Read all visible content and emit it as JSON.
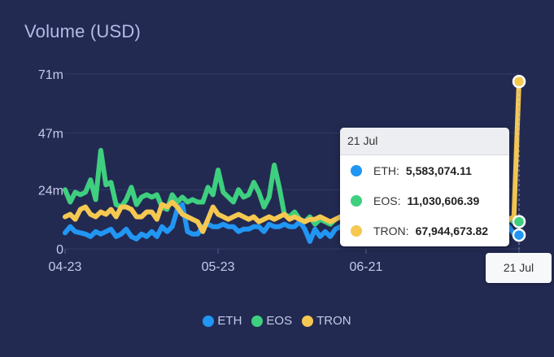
{
  "chart_data": {
    "type": "line",
    "title": "Volume (USD)",
    "y_ticks": [
      "71m",
      "47m",
      "24m",
      "0"
    ],
    "y_tick_values": [
      71000000,
      47000000,
      24000000,
      0
    ],
    "ylim": [
      0,
      71000000
    ],
    "x_tick_labels": [
      "04-23",
      "05-23",
      "06-21",
      "07-21"
    ],
    "x_start": "2019-04-23",
    "x_end": "2019-07-21",
    "grid": true,
    "legend_position": "bottom-center",
    "series": [
      {
        "name": "ETH",
        "color": "#2196f3",
        "values": [
          6.5,
          9,
          7,
          6.5,
          6,
          5,
          7,
          6,
          7,
          8,
          5,
          6,
          8,
          5,
          4,
          6,
          5,
          7,
          5,
          9,
          7,
          9,
          16,
          18,
          7,
          6,
          6,
          9,
          10,
          9,
          9,
          10,
          9,
          9,
          7,
          8,
          8,
          9,
          9,
          7,
          10,
          9,
          9,
          10,
          9,
          9,
          11,
          8,
          3,
          8,
          5,
          7,
          5,
          8,
          9,
          6,
          8,
          4,
          8,
          6,
          9,
          7,
          8,
          4,
          9,
          3,
          5,
          4,
          5,
          7,
          6,
          7,
          8,
          9,
          5,
          7,
          5,
          8,
          7,
          3,
          5,
          7,
          6,
          8,
          7,
          6,
          8,
          9,
          6,
          5.58
        ]
      },
      {
        "name": "EOS",
        "color": "#3ecf7f",
        "values": [
          24,
          19,
          23,
          22,
          23,
          28,
          20,
          40,
          26,
          27,
          18,
          17,
          20,
          25,
          18,
          21,
          22,
          21,
          22,
          17,
          16,
          22,
          19,
          21,
          19,
          20,
          19,
          19,
          25,
          22,
          32,
          23,
          21,
          19,
          24,
          21,
          22,
          27,
          23,
          17,
          21,
          34,
          25,
          14,
          13,
          15,
          12,
          11,
          13,
          10,
          12,
          11,
          10,
          12,
          13,
          15,
          12,
          13,
          14,
          12,
          11,
          13,
          14,
          12,
          13,
          11,
          12,
          14,
          12,
          11,
          12,
          13,
          12,
          11,
          12,
          13,
          11,
          12,
          13,
          12,
          11,
          12,
          11,
          12,
          13,
          12,
          11,
          12,
          11,
          11.03
        ]
      },
      {
        "name": "TRON",
        "color": "#f5c851",
        "values": [
          13,
          14,
          12,
          16,
          17,
          14,
          13,
          15,
          14,
          16,
          13,
          17,
          17,
          16,
          13,
          13,
          15,
          15,
          12,
          18,
          17,
          19,
          17,
          14,
          13,
          12,
          11,
          7,
          12,
          17,
          14,
          13,
          12,
          13,
          14,
          13,
          12,
          13,
          11,
          12,
          13,
          12,
          13,
          14,
          12,
          13,
          12,
          11,
          12,
          12,
          13,
          12,
          11,
          12,
          13,
          14,
          12,
          13,
          14,
          12,
          13,
          11,
          12,
          13,
          12,
          11,
          12,
          14,
          12,
          11,
          12,
          13,
          12,
          11,
          12,
          13,
          14,
          12,
          13,
          12,
          11,
          12,
          13,
          12,
          11,
          13,
          14,
          12,
          13,
          67.94
        ]
      }
    ]
  },
  "tooltip": {
    "date": "21 Jul",
    "rows": [
      {
        "name": "ETH:",
        "value": "5,583,074.11",
        "color": "#2196f3"
      },
      {
        "name": "EOS:",
        "value": "11,030,606.39",
        "color": "#3ecf7f"
      },
      {
        "name": "TRON:",
        "value": "67,944,673.82",
        "color": "#f5c851"
      }
    ]
  },
  "x_tooltip": "21 Jul"
}
